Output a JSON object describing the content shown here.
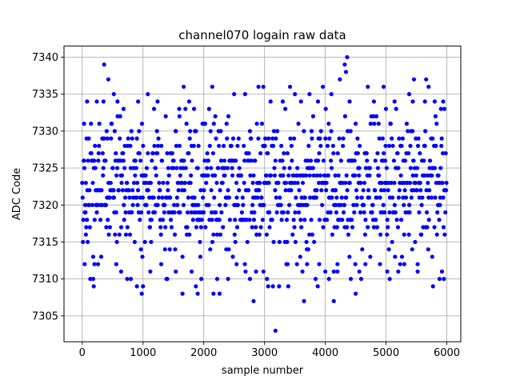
{
  "chart_data": {
    "type": "scatter",
    "title": "channel070 logain raw data",
    "xlabel": "sample number",
    "ylabel": "ADC Code",
    "xlim": [
      -300,
      6230
    ],
    "ylim": [
      7301.5,
      7341.5
    ],
    "xticks": [
      0,
      1000,
      2000,
      3000,
      4000,
      5000,
      6000
    ],
    "yticks": [
      7305,
      7310,
      7315,
      7320,
      7325,
      7330,
      7335,
      7340
    ],
    "grid": true,
    "marker_color": "#0000ff",
    "series": [
      {
        "name": "",
        "n_samples": 6000,
        "band_low": 7315,
        "band_high": 7330,
        "outliers": [
          {
            "x": 30,
            "y": 7331
          },
          {
            "x": 40,
            "y": 7312
          },
          {
            "x": 60,
            "y": 7316
          },
          {
            "x": 80,
            "y": 7334
          },
          {
            "x": 180,
            "y": 7310
          },
          {
            "x": 190,
            "y": 7309
          },
          {
            "x": 200,
            "y": 7312
          },
          {
            "x": 240,
            "y": 7334
          },
          {
            "x": 260,
            "y": 7312
          },
          {
            "x": 350,
            "y": 7334
          },
          {
            "x": 360,
            "y": 7339
          },
          {
            "x": 430,
            "y": 7337
          },
          {
            "x": 520,
            "y": 7335
          },
          {
            "x": 560,
            "y": 7312
          },
          {
            "x": 580,
            "y": 7334
          },
          {
            "x": 640,
            "y": 7311
          },
          {
            "x": 680,
            "y": 7333
          },
          {
            "x": 740,
            "y": 7310
          },
          {
            "x": 800,
            "y": 7310
          },
          {
            "x": 900,
            "y": 7309
          },
          {
            "x": 920,
            "y": 7334
          },
          {
            "x": 980,
            "y": 7308
          },
          {
            "x": 1000,
            "y": 7309
          },
          {
            "x": 1080,
            "y": 7335
          },
          {
            "x": 1120,
            "y": 7311
          },
          {
            "x": 1240,
            "y": 7334
          },
          {
            "x": 1300,
            "y": 7312
          },
          {
            "x": 1400,
            "y": 7310
          },
          {
            "x": 1540,
            "y": 7311
          },
          {
            "x": 1600,
            "y": 7332
          },
          {
            "x": 1650,
            "y": 7308
          },
          {
            "x": 1670,
            "y": 7336
          },
          {
            "x": 1760,
            "y": 7334
          },
          {
            "x": 1800,
            "y": 7311
          },
          {
            "x": 1840,
            "y": 7333
          },
          {
            "x": 1870,
            "y": 7309
          },
          {
            "x": 1900,
            "y": 7308
          },
          {
            "x": 1960,
            "y": 7310
          },
          {
            "x": 2020,
            "y": 7331
          },
          {
            "x": 2140,
            "y": 7336
          },
          {
            "x": 2160,
            "y": 7308
          },
          {
            "x": 2220,
            "y": 7310
          },
          {
            "x": 2260,
            "y": 7308
          },
          {
            "x": 2400,
            "y": 7310
          },
          {
            "x": 2500,
            "y": 7335
          },
          {
            "x": 2540,
            "y": 7312
          },
          {
            "x": 2680,
            "y": 7335
          },
          {
            "x": 2760,
            "y": 7310
          },
          {
            "x": 2820,
            "y": 7307
          },
          {
            "x": 2860,
            "y": 7311
          },
          {
            "x": 2900,
            "y": 7336
          },
          {
            "x": 2980,
            "y": 7336
          },
          {
            "x": 3040,
            "y": 7310
          },
          {
            "x": 3060,
            "y": 7309
          },
          {
            "x": 3100,
            "y": 7334
          },
          {
            "x": 3180,
            "y": 7303
          },
          {
            "x": 3300,
            "y": 7334
          },
          {
            "x": 3380,
            "y": 7312
          },
          {
            "x": 3420,
            "y": 7336
          },
          {
            "x": 3500,
            "y": 7335
          },
          {
            "x": 3600,
            "y": 7334
          },
          {
            "x": 3650,
            "y": 7307
          },
          {
            "x": 3700,
            "y": 7312
          },
          {
            "x": 3740,
            "y": 7335
          },
          {
            "x": 3800,
            "y": 7332
          },
          {
            "x": 3880,
            "y": 7334
          },
          {
            "x": 3900,
            "y": 7312
          },
          {
            "x": 3960,
            "y": 7336
          },
          {
            "x": 4000,
            "y": 7311
          },
          {
            "x": 4060,
            "y": 7310
          },
          {
            "x": 4100,
            "y": 7335
          },
          {
            "x": 4140,
            "y": 7307
          },
          {
            "x": 4200,
            "y": 7311
          },
          {
            "x": 4240,
            "y": 7337
          },
          {
            "x": 4320,
            "y": 7339
          },
          {
            "x": 4340,
            "y": 7338
          },
          {
            "x": 4360,
            "y": 7340
          },
          {
            "x": 4400,
            "y": 7334
          },
          {
            "x": 4420,
            "y": 7310
          },
          {
            "x": 4500,
            "y": 7308
          },
          {
            "x": 4560,
            "y": 7311
          },
          {
            "x": 4660,
            "y": 7312
          },
          {
            "x": 4700,
            "y": 7336
          },
          {
            "x": 4800,
            "y": 7334
          },
          {
            "x": 4900,
            "y": 7312
          },
          {
            "x": 4960,
            "y": 7336
          },
          {
            "x": 5020,
            "y": 7311
          },
          {
            "x": 5060,
            "y": 7310
          },
          {
            "x": 5140,
            "y": 7334
          },
          {
            "x": 5200,
            "y": 7311
          },
          {
            "x": 5300,
            "y": 7312
          },
          {
            "x": 5380,
            "y": 7335
          },
          {
            "x": 5440,
            "y": 7334
          },
          {
            "x": 5460,
            "y": 7337
          },
          {
            "x": 5520,
            "y": 7311
          },
          {
            "x": 5640,
            "y": 7334
          },
          {
            "x": 5660,
            "y": 7337
          },
          {
            "x": 5700,
            "y": 7336
          },
          {
            "x": 5760,
            "y": 7313
          },
          {
            "x": 5800,
            "y": 7334
          },
          {
            "x": 5880,
            "y": 7310
          },
          {
            "x": 5920,
            "y": 7311
          },
          {
            "x": 5940,
            "y": 7334
          },
          {
            "x": 5960,
            "y": 7333
          }
        ]
      }
    ]
  }
}
